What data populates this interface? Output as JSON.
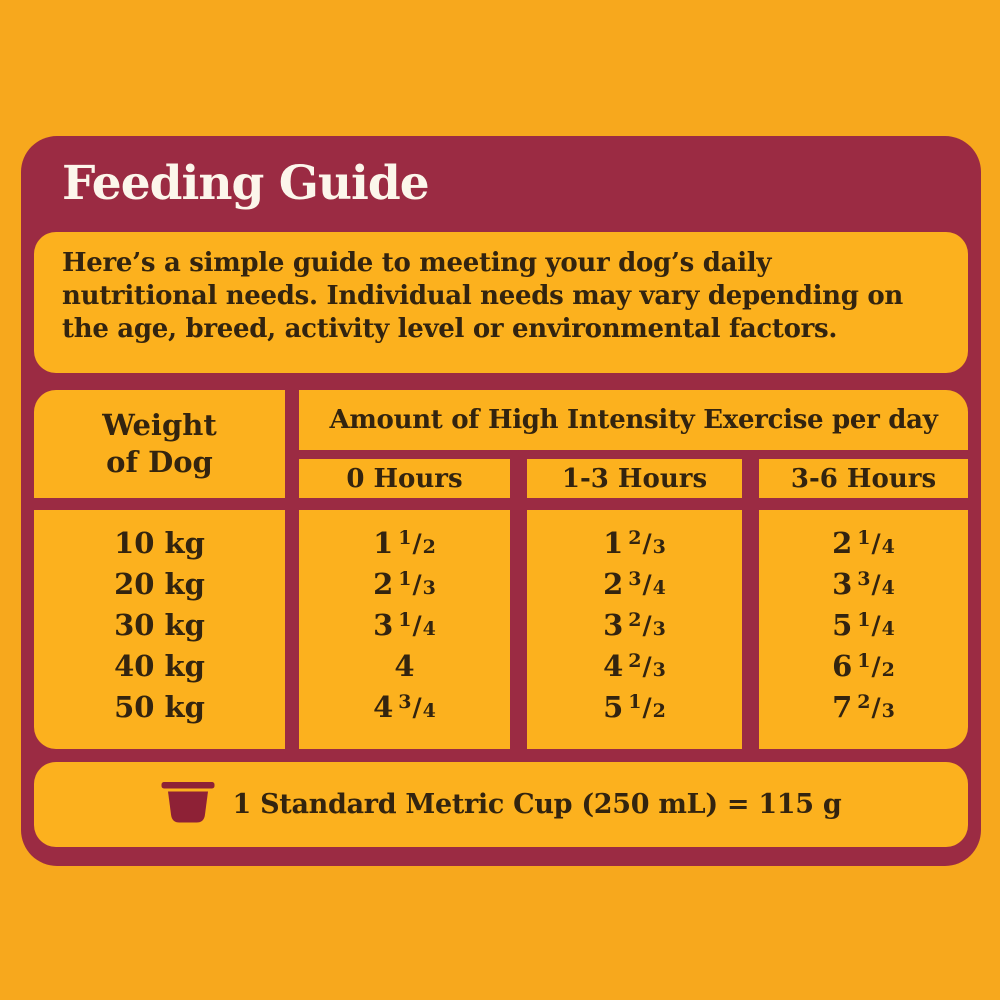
{
  "title": "Feeding Guide",
  "description": {
    "lines": [
      "Here’s a simple guide to meeting your dog’s daily",
      "nutritional needs. Individual needs may vary depending on",
      "the age, breed, activity level or environmental factors."
    ]
  },
  "table": {
    "weight_header": "Weight\nof Dog",
    "exercise_header": "Amount of High Intensity Exercise per day",
    "columns": [
      "0 Hours",
      "1-3 Hours",
      "3-6 Hours"
    ],
    "rows": [
      {
        "weight": "10 kg",
        "cups": [
          "1 1/2",
          "1 2/3",
          "2 1/4"
        ]
      },
      {
        "weight": "20 kg",
        "cups": [
          "2 1/3",
          "2 3/4",
          "3 3/4"
        ]
      },
      {
        "weight": "30 kg",
        "cups": [
          "3 1/4",
          "3 2/3",
          "5 1/4"
        ]
      },
      {
        "weight": "40 kg",
        "cups": [
          "4",
          "4 2/3",
          "6 1/2"
        ]
      },
      {
        "weight": "50 kg",
        "cups": [
          "4 3/4",
          "5 1/2",
          "7 2/3"
        ]
      }
    ]
  },
  "footer": {
    "note": "1 Standard Metric Cup (250 mL) = 115 g",
    "icon": "measuring-cup-icon"
  },
  "colors": {
    "background": "#F7A81D",
    "panel": "#9B2B43",
    "cell": "#FCB11E",
    "text_dark": "#33240F",
    "title_text": "#FCF6EB",
    "cup_icon": "#8E2136"
  },
  "chart_data": {
    "type": "table",
    "title": "Feeding Guide",
    "column_group_label": "Amount of High Intensity Exercise per day",
    "columns": [
      "Weight of Dog",
      "0 Hours",
      "1-3 Hours",
      "3-6 Hours"
    ],
    "rows": [
      [
        "10 kg",
        "1 1/2",
        "1 2/3",
        "2 1/4"
      ],
      [
        "20 kg",
        "2 1/3",
        "2 3/4",
        "3 3/4"
      ],
      [
        "30 kg",
        "3 1/4",
        "3 2/3",
        "5 1/4"
      ],
      [
        "40 kg",
        "4",
        "4 2/3",
        "6 1/2"
      ],
      [
        "50 kg",
        "4 3/4",
        "5 1/2",
        "7 2/3"
      ]
    ],
    "note": "1 Standard Metric Cup (250 mL) = 115 g"
  }
}
